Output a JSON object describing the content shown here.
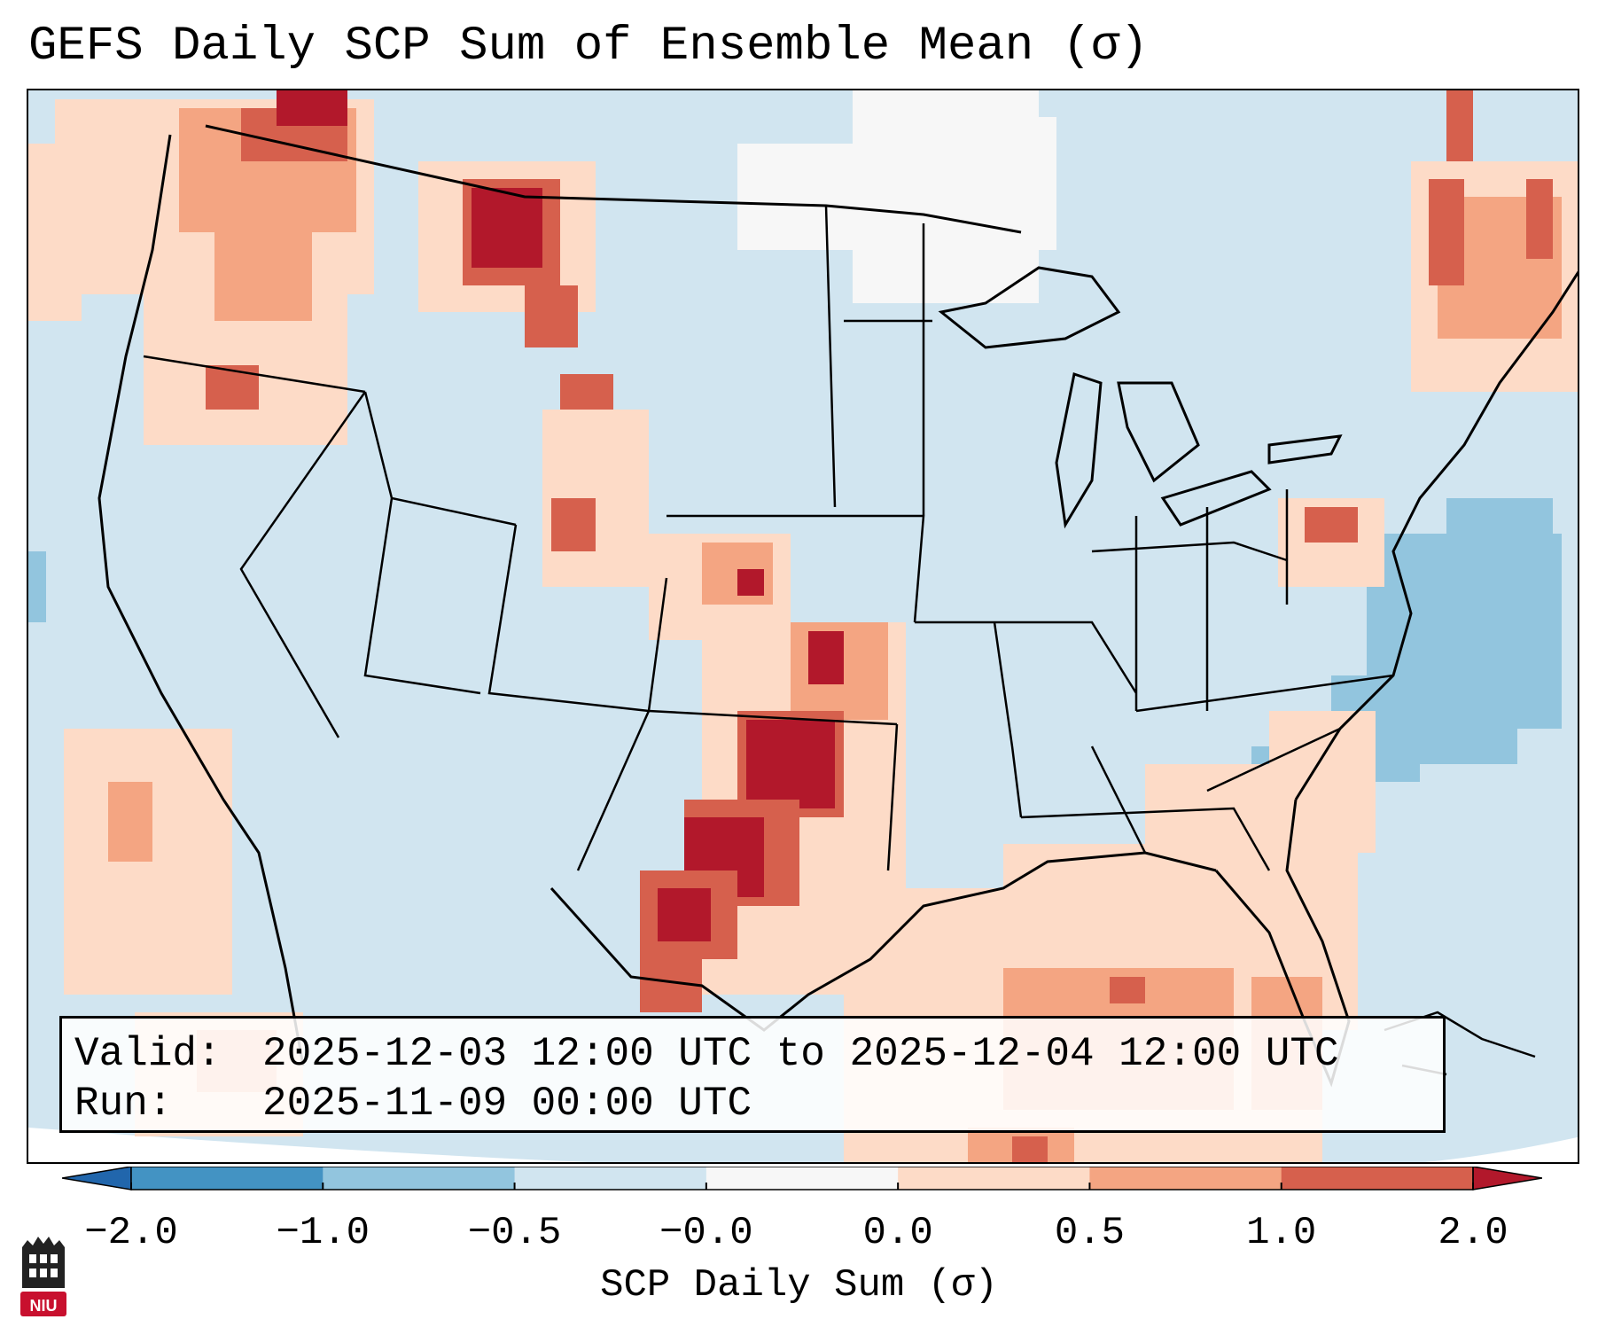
{
  "title": "GEFS Daily SCP Sum of Ensemble Mean (σ)",
  "info": {
    "valid_label": "Valid:",
    "valid_value": "2025-12-03 12:00 UTC to 2025-12-04 12:00 UTC",
    "run_label": "Run:",
    "run_value": "2025-11-09 00:00 UTC"
  },
  "colorbar": {
    "label": "SCP Daily Sum (σ)",
    "ticks": [
      "−2.0",
      "−1.0",
      "−0.5",
      "−0.0",
      "0.0",
      "0.5",
      "1.0",
      "2.0"
    ],
    "bin_colors": [
      "#4393c3",
      "#92c5de",
      "#d1e5f0",
      "#f7f7f7",
      "#fddbc7",
      "#f4a582",
      "#d6604d"
    ],
    "under_color": "#2166ac",
    "over_color": "#b2182b"
  },
  "map": {
    "projection": "Lambert Conformal, CONUS",
    "background_class": "-0.5 to -0.0",
    "features": [
      "Pacific Northwest positive anomaly",
      "Northern Rockies positive anomaly",
      "Southern Plains SW-NE band up to +2.0",
      "Gulf of Mexico and Southeast positive anomaly",
      "Western Atlantic negative anomaly"
    ]
  },
  "logo": {
    "text": "NIU"
  }
}
